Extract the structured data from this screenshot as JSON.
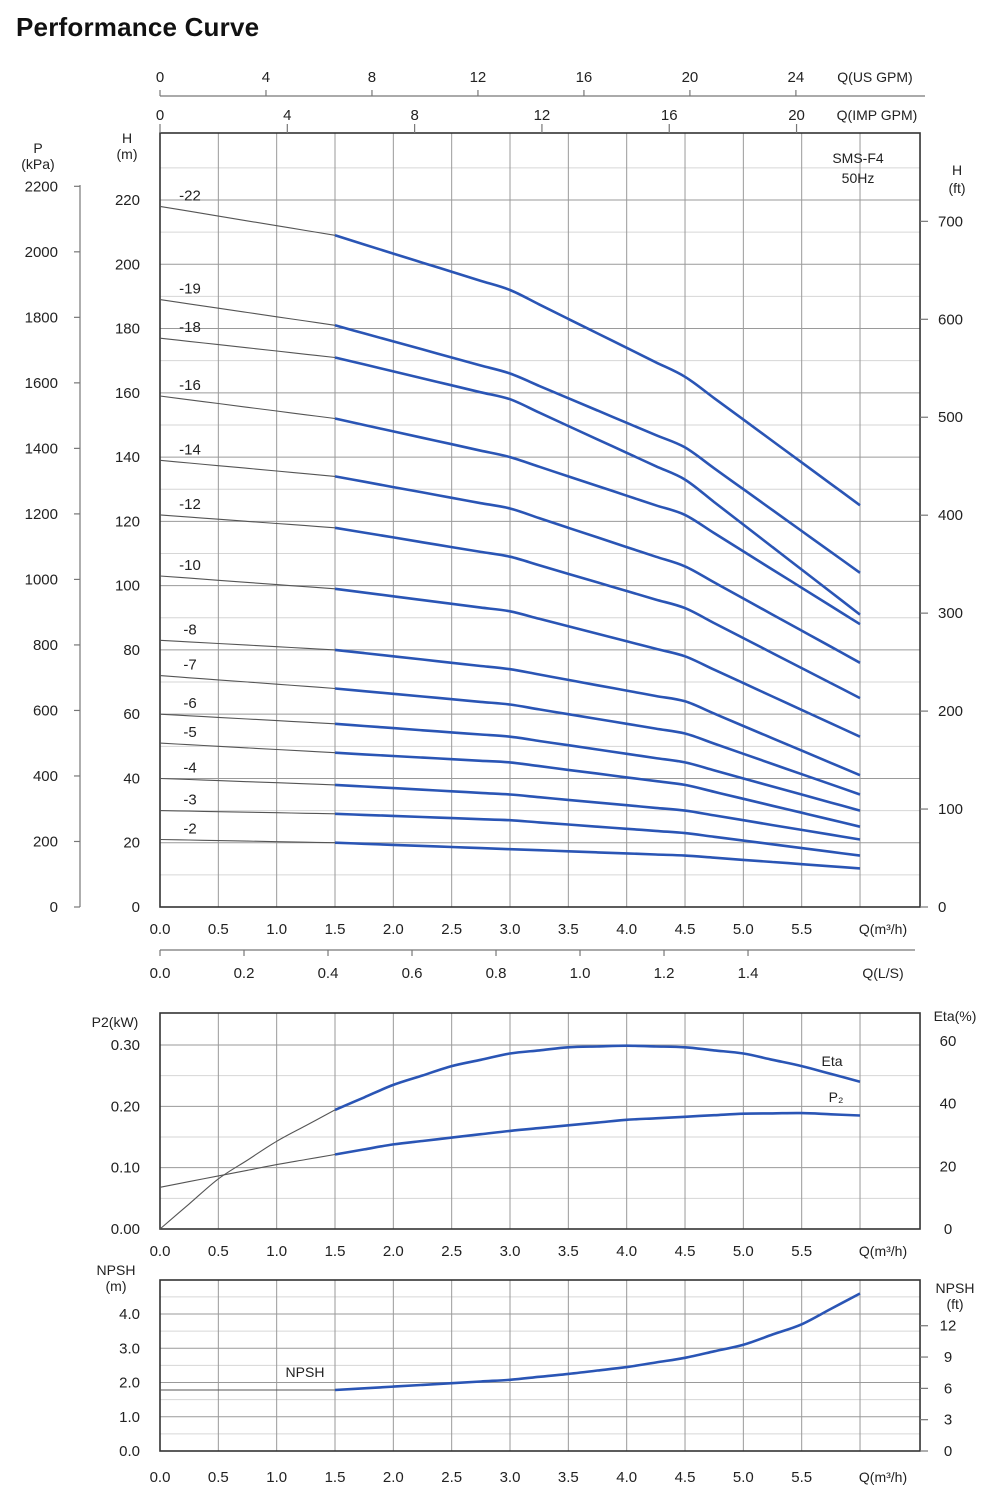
{
  "title": "Performance Curve",
  "chart_data": [
    {
      "type": "line",
      "name": "head",
      "model_label": [
        "SMS-F4",
        "50Hz"
      ],
      "x_axis": {
        "label": "Q(m³/h)",
        "ticks": [
          "0.0",
          "0.5",
          "1.0",
          "1.5",
          "2.0",
          "2.5",
          "3.0",
          "3.5",
          "4.0",
          "4.5",
          "5.0",
          "5.5"
        ],
        "range": [
          0,
          6.0
        ]
      },
      "x_axis_ls": {
        "label": "Q(L/S)",
        "ticks": [
          "0.0",
          "0.2",
          "0.4",
          "0.6",
          "0.8",
          "1.0",
          "1.2",
          "1.4"
        ],
        "values": [
          0,
          0.2,
          0.4,
          0.6,
          0.8,
          1.0,
          1.2,
          1.4
        ]
      },
      "x_axis_usgpm": {
        "label": "Q(US GPM)",
        "ticks": [
          "0",
          "4",
          "8",
          "12",
          "16",
          "20",
          "24"
        ],
        "values": [
          0,
          4,
          8,
          12,
          16,
          20,
          24
        ]
      },
      "x_axis_impgpm": {
        "label": "Q(IMP GPM)",
        "ticks": [
          "0",
          "4",
          "8",
          "12",
          "16",
          "20"
        ],
        "values": [
          0,
          4,
          8,
          12,
          16,
          20
        ]
      },
      "y_axis": {
        "label": "H\n(m)",
        "ticks": [
          "0",
          "20",
          "40",
          "60",
          "80",
          "100",
          "120",
          "140",
          "160",
          "180",
          "200",
          "220"
        ],
        "range": [
          0,
          240
        ]
      },
      "y_axis_kpa": {
        "label": "P\n(kPa)",
        "ticks": [
          "0",
          "200",
          "400",
          "600",
          "800",
          "1000",
          "1200",
          "1400",
          "1600",
          "1800",
          "2000",
          "2200"
        ],
        "values": [
          0,
          200,
          400,
          600,
          800,
          1000,
          1200,
          1400,
          1600,
          1800,
          2000,
          2200
        ]
      },
      "y_axis_ft": {
        "label": "H\n(ft)",
        "ticks": [
          "0",
          "100",
          "200",
          "300",
          "400",
          "500",
          "600",
          "700"
        ],
        "values": [
          0,
          100,
          200,
          300,
          400,
          500,
          600,
          700
        ]
      },
      "x": [
        0,
        1.5,
        3.0,
        4.5,
        6.0
      ],
      "series": [
        {
          "name": "-22",
          "values": [
            218,
            209,
            192,
            165,
            125
          ]
        },
        {
          "name": "-19",
          "values": [
            189,
            181,
            166,
            143,
            104
          ]
        },
        {
          "name": "-18",
          "values": [
            177,
            171,
            158,
            133,
            91
          ]
        },
        {
          "name": "-16",
          "values": [
            159,
            152,
            140,
            122,
            88
          ]
        },
        {
          "name": "-14",
          "values": [
            139,
            134,
            124,
            106,
            76
          ]
        },
        {
          "name": "-12",
          "values": [
            122,
            118,
            109,
            93,
            65
          ]
        },
        {
          "name": "-10",
          "values": [
            103,
            99,
            92,
            78,
            53
          ]
        },
        {
          "name": "-8",
          "values": [
            83,
            80,
            74,
            64,
            41
          ]
        },
        {
          "name": "-7",
          "values": [
            72,
            68,
            63,
            54,
            35
          ]
        },
        {
          "name": "-6",
          "values": [
            60,
            57,
            53,
            45,
            30
          ]
        },
        {
          "name": "-5",
          "values": [
            51,
            48,
            45,
            38,
            25
          ]
        },
        {
          "name": "-4",
          "values": [
            40,
            38,
            35,
            30,
            21
          ]
        },
        {
          "name": "-3",
          "values": [
            30,
            29,
            27,
            23,
            16
          ]
        },
        {
          "name": "-2",
          "values": [
            21,
            20,
            18,
            16,
            12
          ]
        }
      ]
    },
    {
      "type": "line",
      "name": "power-efficiency",
      "x_axis": {
        "label": "Q(m³/h)",
        "ticks": [
          "0.0",
          "0.5",
          "1.0",
          "1.5",
          "2.0",
          "2.5",
          "3.0",
          "3.5",
          "4.0",
          "4.5",
          "5.0",
          "5.5"
        ],
        "range": [
          0,
          6.0
        ]
      },
      "y_axis": {
        "label": "P2(kW)",
        "ticks": [
          "0.00",
          "0.10",
          "0.20",
          "0.30"
        ],
        "range": [
          0,
          0.35
        ]
      },
      "y_axis_right": {
        "label": "Eta(%)",
        "ticks": [
          "0",
          "20",
          "40",
          "60"
        ],
        "range": [
          0,
          70
        ]
      },
      "series": [
        {
          "name": "Eta",
          "axis": "right",
          "x": [
            0,
            0.5,
            1.0,
            1.5,
            2.0,
            2.5,
            3.0,
            3.5,
            4.0,
            4.5,
            5.0,
            5.5,
            6.0
          ],
          "values": [
            0,
            16,
            28,
            38,
            46,
            52,
            56,
            58,
            58.5,
            58,
            56,
            52,
            47
          ]
        },
        {
          "name": "P₂",
          "axis": "left",
          "x": [
            0,
            1.0,
            2.0,
            3.0,
            4.0,
            5.0,
            5.5,
            6.0
          ],
          "values": [
            0.068,
            0.105,
            0.138,
            0.16,
            0.178,
            0.188,
            0.189,
            0.185
          ]
        }
      ]
    },
    {
      "type": "line",
      "name": "npsh",
      "x_axis": {
        "label": "Q(m³/h)",
        "ticks": [
          "0.0",
          "0.5",
          "1.0",
          "1.5",
          "2.0",
          "2.5",
          "3.0",
          "3.5",
          "4.0",
          "4.5",
          "5.0",
          "5.5"
        ],
        "range": [
          0,
          6.0
        ]
      },
      "y_axis": {
        "label": "NPSH\n(m)",
        "ticks": [
          "0.0",
          "1.0",
          "2.0",
          "3.0",
          "4.0"
        ],
        "range": [
          0,
          4.7
        ]
      },
      "y_axis_right": {
        "label": "NPSH\n(ft)",
        "ticks": [
          "0",
          "3",
          "6",
          "9",
          "12"
        ],
        "values": [
          0,
          3,
          6,
          9,
          12
        ]
      },
      "series": [
        {
          "name": "NPSH",
          "x": [
            0,
            1.5,
            2.0,
            2.5,
            3.0,
            3.5,
            4.0,
            4.5,
            5.0,
            5.5,
            6.0
          ],
          "values": [
            1.78,
            1.78,
            1.88,
            1.98,
            2.08,
            2.25,
            2.45,
            2.72,
            3.1,
            3.7,
            4.6
          ]
        }
      ]
    }
  ]
}
